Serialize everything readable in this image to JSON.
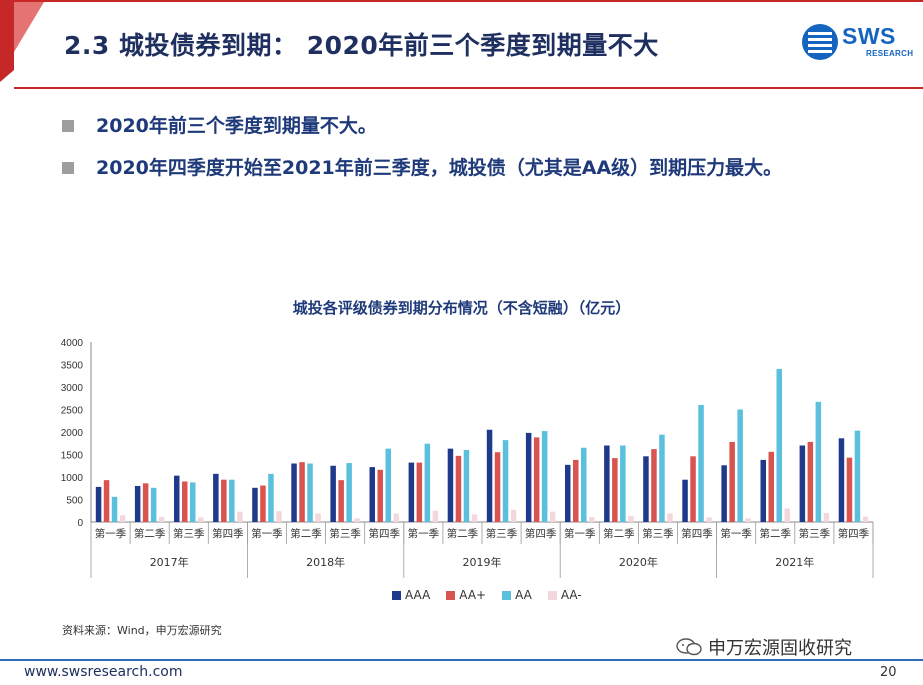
{
  "header": {
    "title": "2.3 城投债券到期： 2020年前三个季度到期量不大",
    "logo_text": "SWS",
    "logo_subtext": "RESEARCH",
    "accent_color": "#c62828",
    "title_color": "#1f3060"
  },
  "bullets": [
    "2020年前三个季度到期量不大。",
    "2020年四季度开始至2021年前三季度，城投债（尤其是AA级）到期压力最大。"
  ],
  "chart_data": {
    "type": "bar",
    "title": "城投各评级债券到期分布情况（不含短融）（亿元）",
    "ylim": [
      0,
      4000
    ],
    "yticks": [
      0,
      500,
      1000,
      1500,
      2000,
      2500,
      3000,
      3500,
      4000
    ],
    "grid": false,
    "legend_position": "bottom",
    "categories": [
      "第一季",
      "第二季",
      "第三季",
      "第四季",
      "第一季",
      "第二季",
      "第三季",
      "第四季",
      "第一季",
      "第二季",
      "第三季",
      "第四季",
      "第一季",
      "第二季",
      "第三季",
      "第四季",
      "第一季",
      "第二季",
      "第三季",
      "第四季"
    ],
    "groups": [
      "2017年",
      "2018年",
      "2019年",
      "2020年",
      "2021年"
    ],
    "series": [
      {
        "name": "AAA",
        "color": "#1f3a8a",
        "values": [
          780,
          800,
          1030,
          1070,
          760,
          1300,
          1250,
          1220,
          1320,
          1630,
          2050,
          1980,
          1270,
          1700,
          1460,
          940,
          1260,
          1380,
          1700,
          1860
        ]
      },
      {
        "name": "AA+",
        "color": "#d9534f",
        "values": [
          930,
          860,
          900,
          940,
          810,
          1330,
          930,
          1160,
          1320,
          1470,
          1550,
          1880,
          1380,
          1420,
          1620,
          1460,
          1780,
          1560,
          1780,
          1430
        ]
      },
      {
        "name": "AA",
        "color": "#5bc0de",
        "values": [
          560,
          760,
          880,
          940,
          1070,
          1300,
          1310,
          1630,
          1740,
          1600,
          1820,
          2020,
          1650,
          1700,
          1940,
          2600,
          2500,
          3400,
          2670,
          2030
        ]
      },
      {
        "name": "AA-",
        "color": "#f2d7dc",
        "values": [
          150,
          110,
          100,
          230,
          240,
          190,
          80,
          190,
          250,
          170,
          270,
          230,
          110,
          130,
          190,
          100,
          80,
          300,
          200,
          120
        ]
      }
    ]
  },
  "footer": {
    "source": "资料来源：Wind，申万宏源研究",
    "url": "www.swsresearch.com",
    "page": "20",
    "wechat": "申万宏源固收研究"
  }
}
